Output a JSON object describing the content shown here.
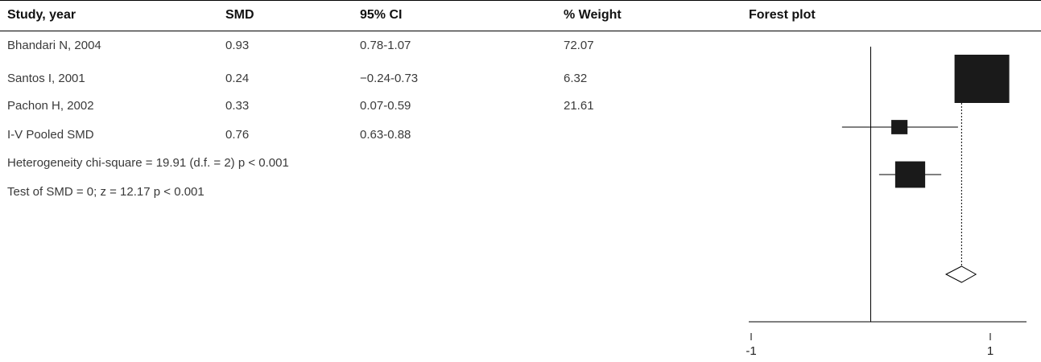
{
  "table": {
    "headers": {
      "study": "Study, year",
      "smd": "SMD",
      "ci": "95% CI",
      "weight": "% Weight",
      "plot": "Forest plot"
    },
    "rows": [
      {
        "study": "Bhandari N, 2004",
        "smd": "0.93",
        "ci": "0.78-1.07",
        "weight": "72.07"
      },
      {
        "study": "Santos I, 2001",
        "smd": "0.24",
        "ci": "−0.24-0.73",
        "weight": "6.32"
      },
      {
        "study": "Pachon H, 2002",
        "smd": "0.33",
        "ci": "0.07-0.59",
        "weight": "21.61"
      },
      {
        "study": "I-V Pooled SMD",
        "smd": "0.76",
        "ci": "0.63-0.88",
        "weight": ""
      }
    ],
    "notes": [
      "Heterogeneity chi-square = 19.91 (d.f. = 2) p < 0.001",
      "Test of SMD = 0; z = 12.17 p < 0.001"
    ]
  },
  "chart_data": {
    "type": "forest",
    "title": "Forest plot",
    "x_ticks": [
      -1,
      1
    ],
    "x_tick_labels": [
      "-1",
      "1"
    ],
    "xlim": [
      -1,
      1.05
    ],
    "null_line": 0,
    "studies": [
      {
        "label": "Bhandari N, 2004",
        "smd": 0.93,
        "ci_low": 0.78,
        "ci_high": 1.07,
        "weight": 72.07
      },
      {
        "label": "Santos I, 2001",
        "smd": 0.24,
        "ci_low": -0.24,
        "ci_high": 0.73,
        "weight": 6.32
      },
      {
        "label": "Pachon H, 2002",
        "smd": 0.33,
        "ci_low": 0.07,
        "ci_high": 0.59,
        "weight": 21.61
      }
    ],
    "pooled": {
      "label": "I-V Pooled SMD",
      "smd": 0.76,
      "ci_low": 0.63,
      "ci_high": 0.88
    },
    "colors": {
      "marker": "#1a1a1a",
      "line": "#000000",
      "pooled_marker_fill": "#ffffff"
    }
  }
}
